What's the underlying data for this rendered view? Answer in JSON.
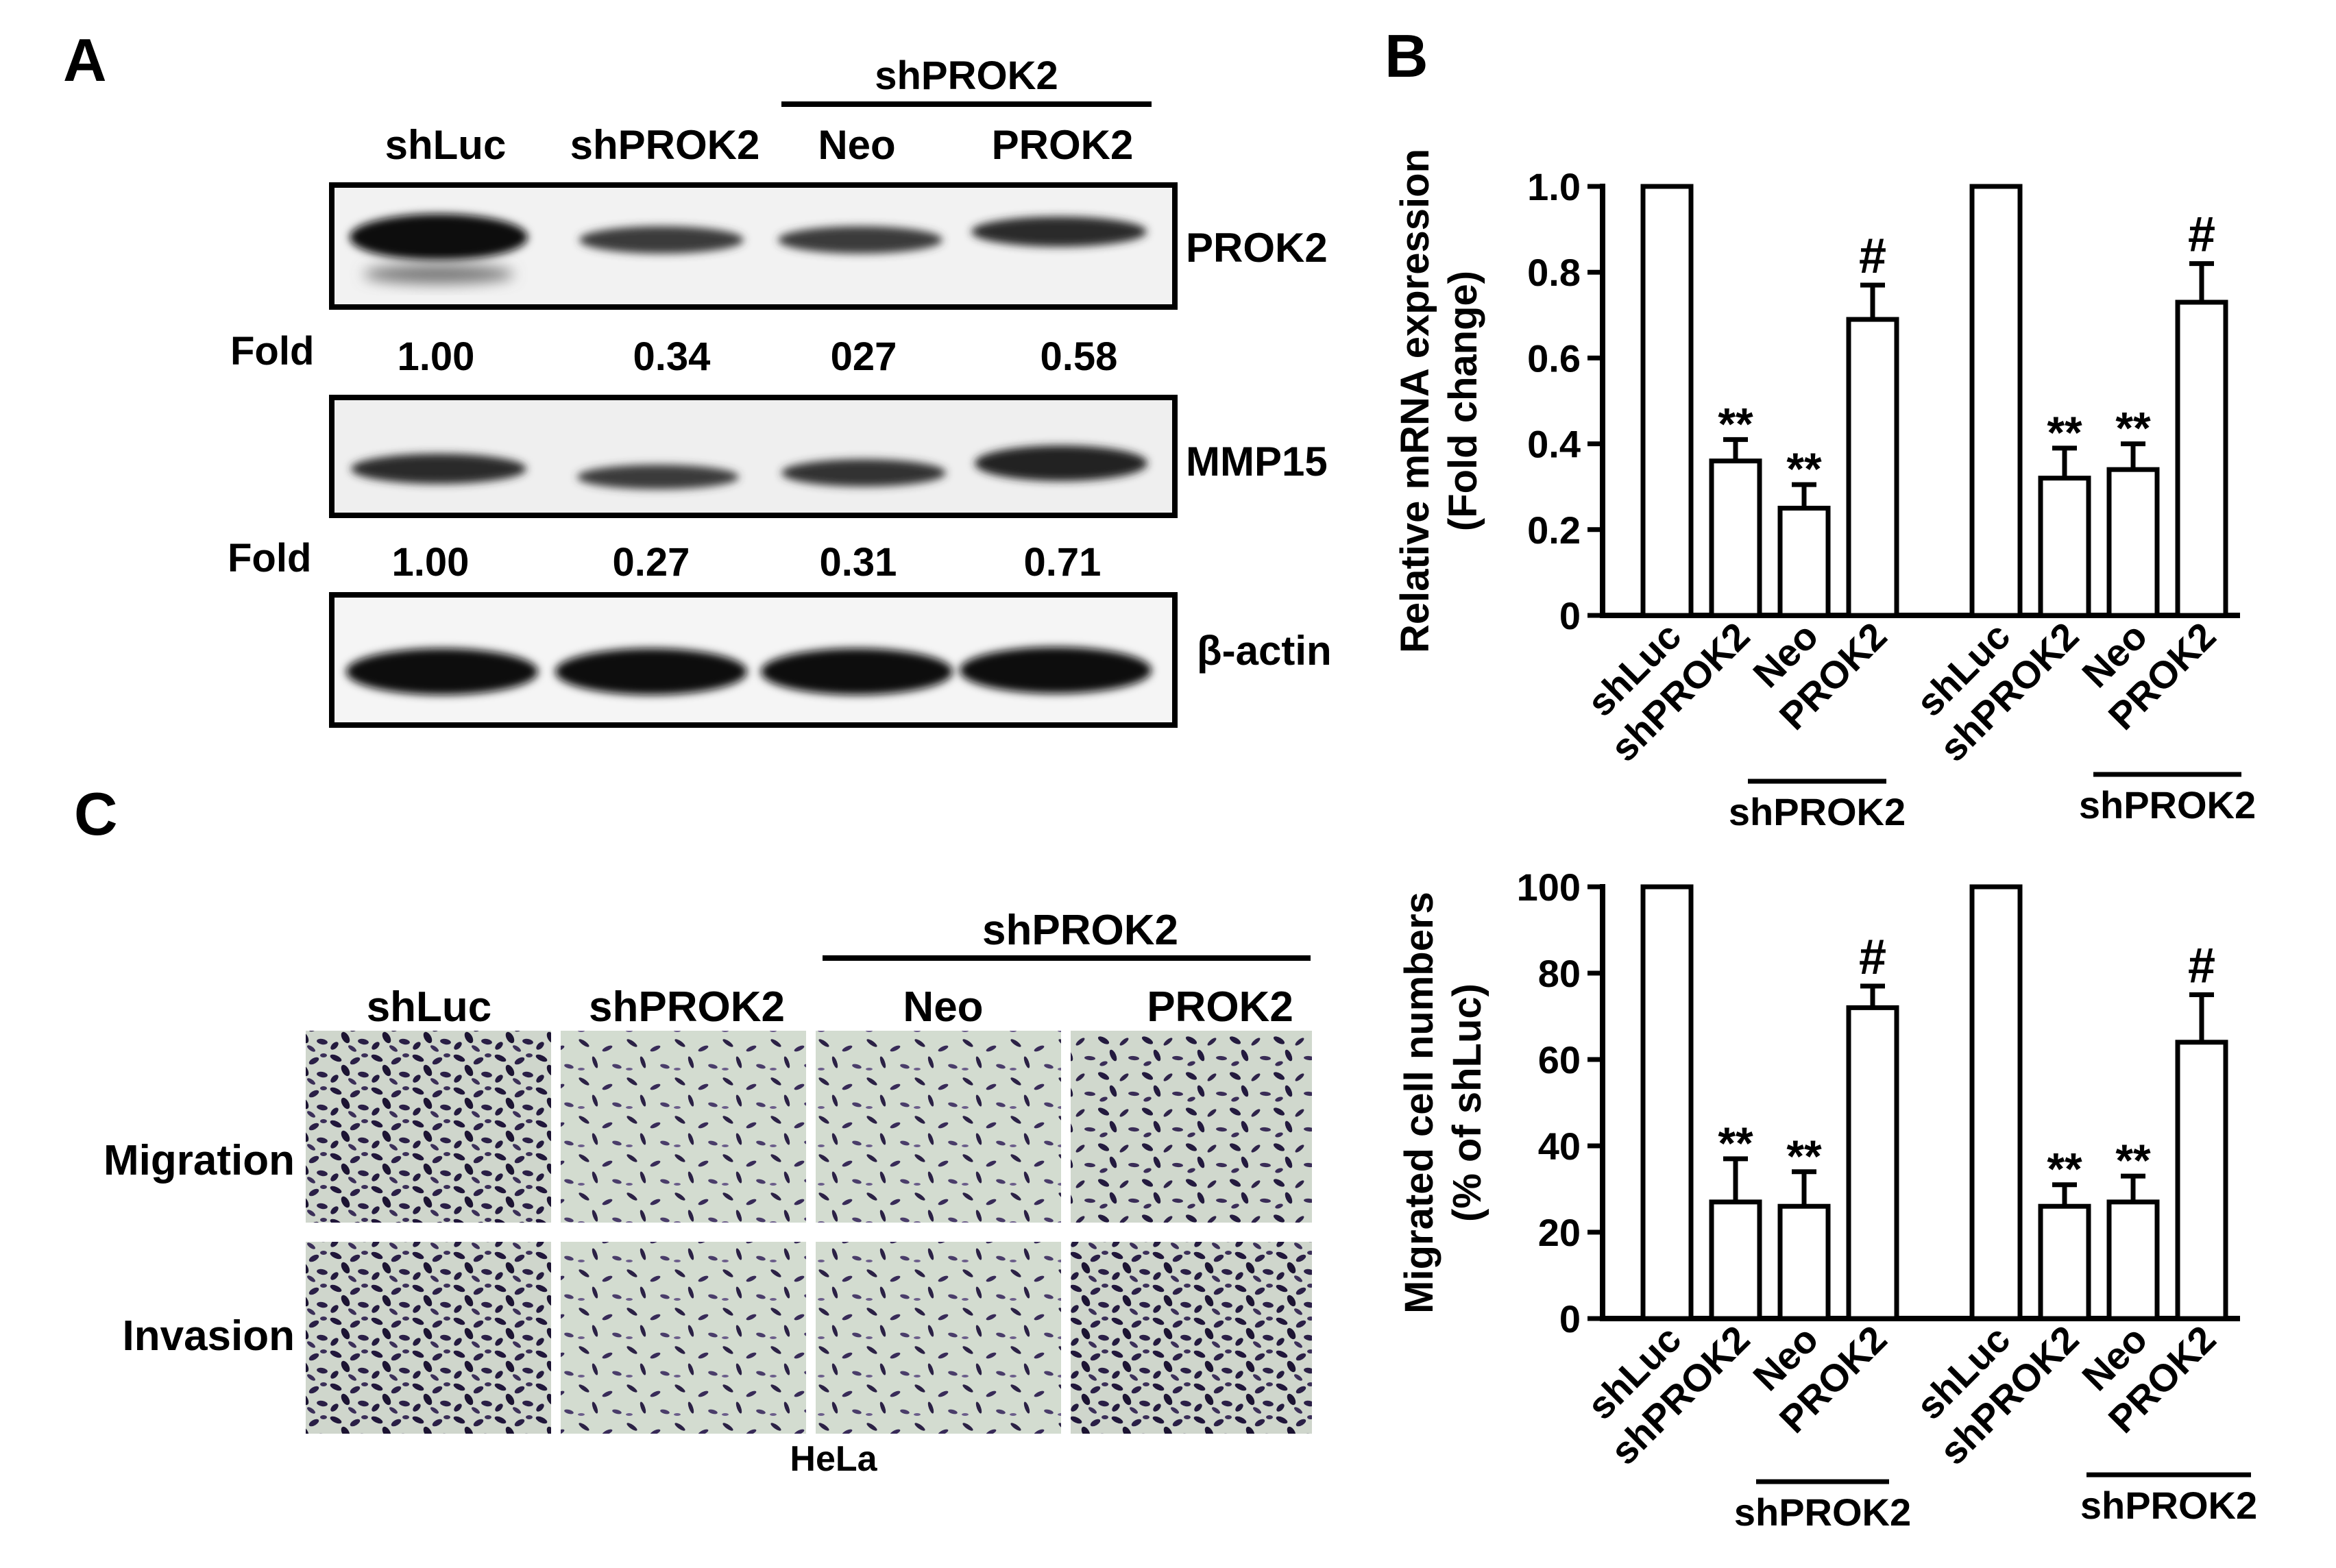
{
  "panels": {
    "A": {
      "letter": "A",
      "group_label": "shPROK2",
      "lanes": [
        "shLuc",
        "shPROK2",
        "Neo",
        "PROK2"
      ],
      "blots": [
        {
          "protein": "PROK2",
          "fold_label": "Fold",
          "folds": [
            "1.00",
            "0.34",
            "027",
            "0.58"
          ]
        },
        {
          "protein": "MMP15",
          "fold_label": "Fold",
          "folds": [
            "1.00",
            "0.27",
            "0.31",
            "0.71"
          ]
        },
        {
          "protein": "β-actin"
        }
      ]
    },
    "B": {
      "letter": "B"
    },
    "C": {
      "letter": "C",
      "group_label": "shPROK2",
      "columns": [
        "shLuc",
        "shPROK2",
        "Neo",
        "PROK2"
      ],
      "rows": [
        "Migration",
        "Invasion"
      ],
      "caption": "HeLa"
    }
  },
  "chart_data": [
    {
      "type": "bar",
      "panel": "B",
      "ylabel": "Relative mRNA expression",
      "ylabel2": "(Fold change)",
      "ylim": [
        0,
        1.0
      ],
      "yticks": [
        "0",
        "0.2",
        "0.4",
        "0.6",
        "0.8",
        "1.0"
      ],
      "ytick_values": [
        0,
        0.2,
        0.4,
        0.6,
        0.8,
        1.0
      ],
      "categories": [
        "shLuc",
        "shPROK2",
        "Neo",
        "PROK2",
        "shLuc",
        "shPROK2",
        "Neo",
        "PROK2"
      ],
      "values": [
        1.0,
        0.36,
        0.25,
        0.69,
        1.0,
        0.32,
        0.34,
        0.73
      ],
      "errors": [
        0,
        0.05,
        0.055,
        0.08,
        0,
        0.07,
        0.06,
        0.09
      ],
      "annotations": [
        "",
        "**",
        "**",
        "#",
        "",
        "**",
        "**",
        "#"
      ],
      "group_label": "shPROK2"
    },
    {
      "type": "bar",
      "panel": "C",
      "ylabel": "Migrated cell numbers",
      "ylabel2": "(% of shLuc)",
      "ylim": [
        0,
        100
      ],
      "yticks": [
        "0",
        "20",
        "40",
        "60",
        "80",
        "100"
      ],
      "ytick_values": [
        0,
        20,
        40,
        60,
        80,
        100
      ],
      "categories": [
        "shLuc",
        "shPROK2",
        "Neo",
        "PROK2",
        "shLuc",
        "shPROK2",
        "Neo",
        "PROK2"
      ],
      "values": [
        100,
        27,
        26,
        72,
        100,
        26,
        27,
        64
      ],
      "errors": [
        0,
        10,
        8,
        5,
        0,
        5,
        6,
        11
      ],
      "annotations": [
        "",
        "**",
        "**",
        "#",
        "",
        "**",
        "**",
        "#"
      ],
      "group_label": "shPROK2"
    }
  ]
}
